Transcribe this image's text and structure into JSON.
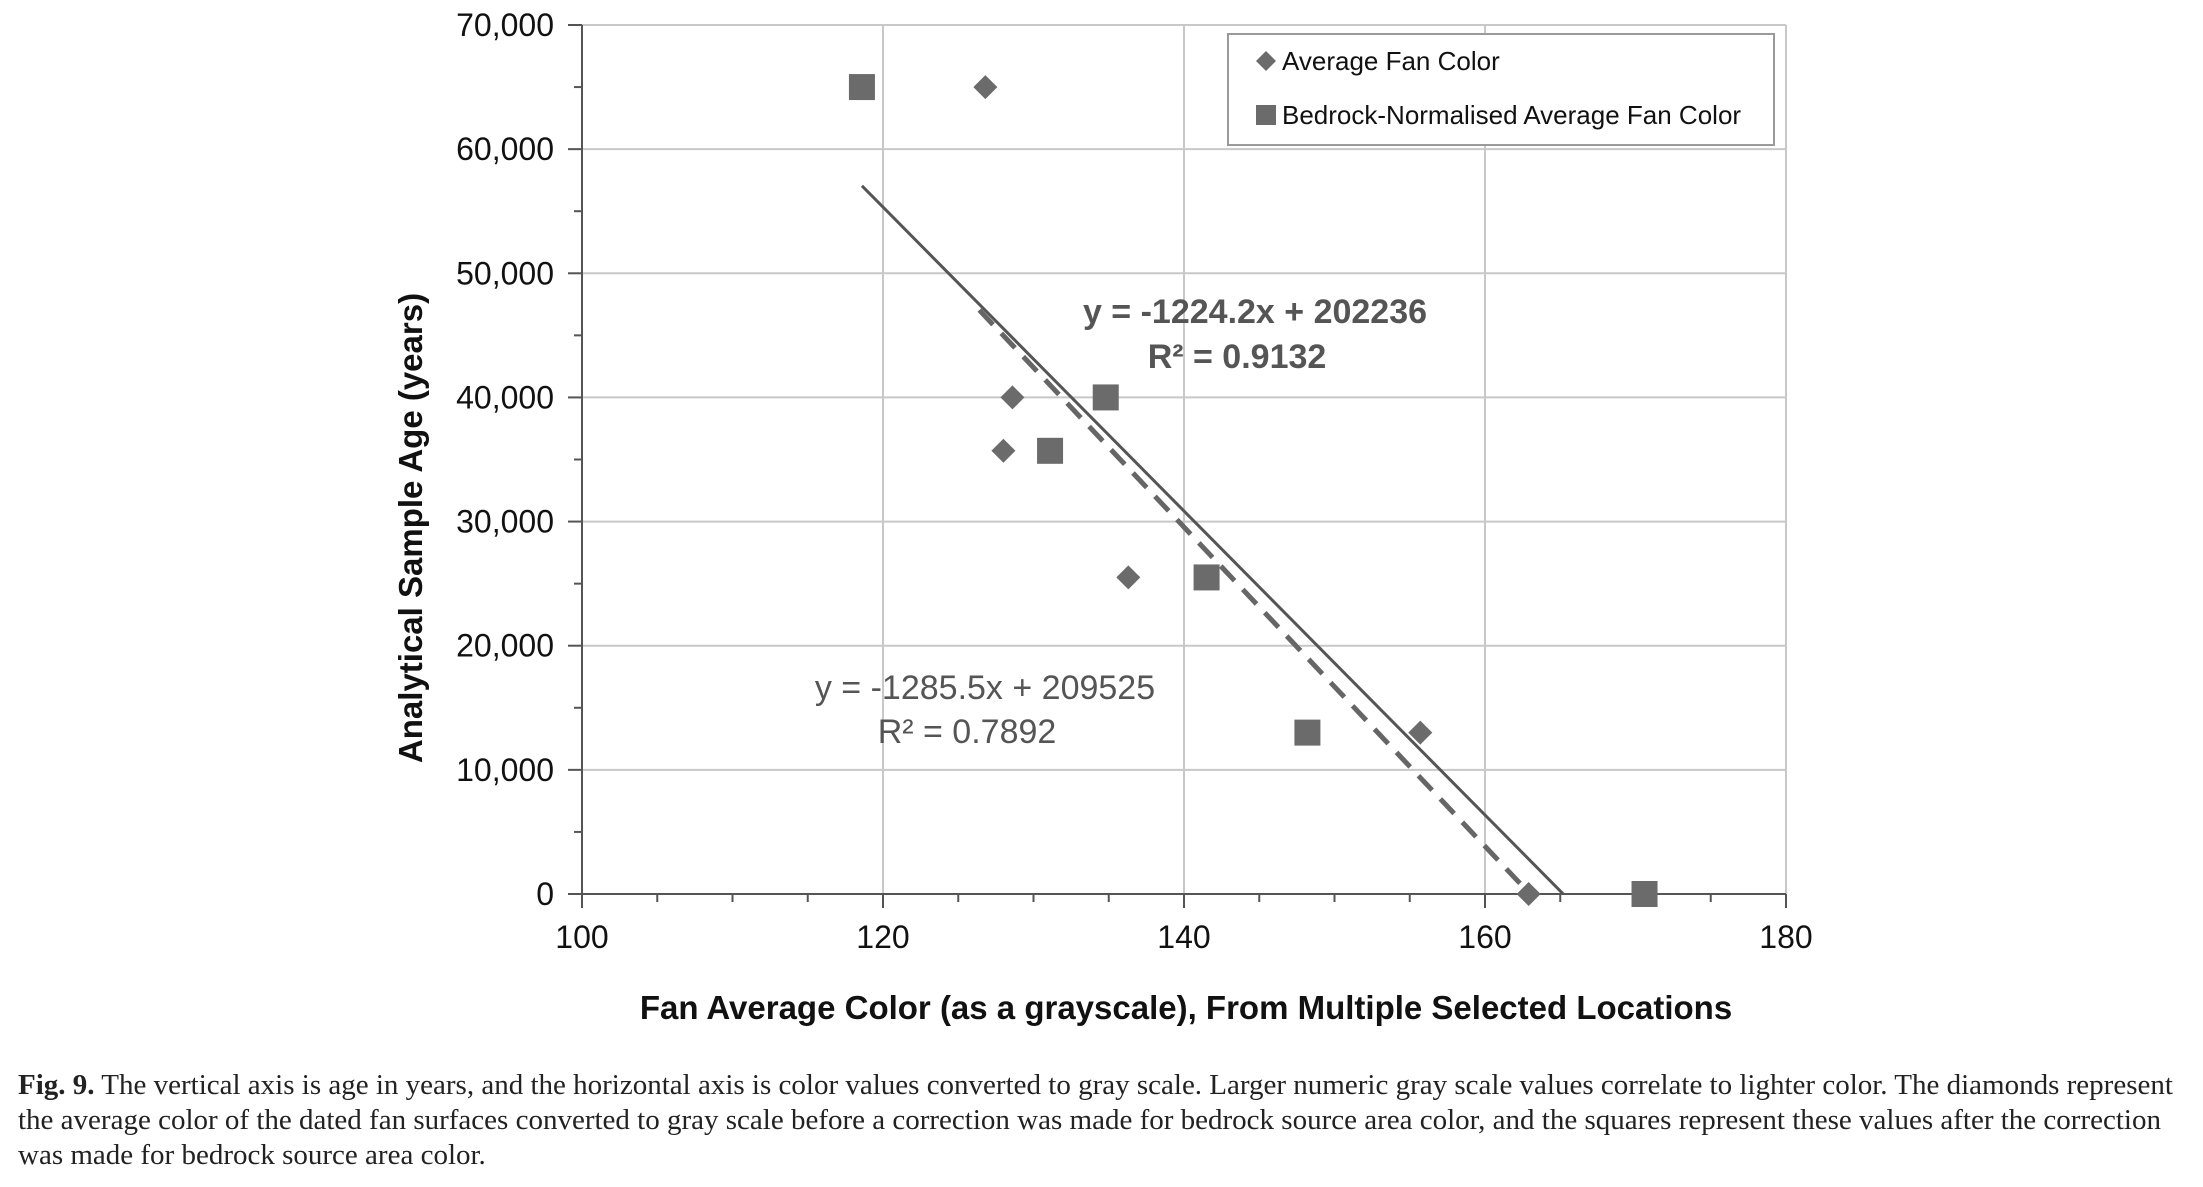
{
  "chart_data": {
    "type": "scatter",
    "xlabel": "Fan Average Color (as a grayscale), From Multiple Selected Locations",
    "ylabel": "Analytical Sample Age (years)",
    "xlim": [
      100,
      180
    ],
    "ylim": [
      0,
      70000
    ],
    "x_ticks": [
      100,
      120,
      140,
      160,
      180
    ],
    "x_tick_labels": [
      "100",
      "120",
      "140",
      "160",
      "180"
    ],
    "y_ticks": [
      0,
      10000,
      20000,
      30000,
      40000,
      50000,
      60000,
      70000
    ],
    "y_tick_labels": [
      "0",
      "10,000",
      "20,000",
      "30,000",
      "40,000",
      "50,000",
      "60,000",
      "70,000"
    ],
    "grid": true,
    "legend_position": "top-right",
    "series": [
      {
        "name": "Average Fan Color",
        "marker": "diamond",
        "color": "#6b6b6b",
        "points": [
          [
            126.8,
            65000
          ],
          [
            128.6,
            40000
          ],
          [
            128.0,
            35700
          ],
          [
            136.3,
            25500
          ],
          [
            155.7,
            13000
          ],
          [
            162.9,
            0
          ]
        ],
        "trendline": {
          "slope": -1285.5,
          "intercept": 209525,
          "x_range": [
            126.4,
            163.0
          ],
          "style": "dashed",
          "equation": "y = -1285.5x + 209525",
          "r2": "R² = 0.7892"
        }
      },
      {
        "name": "Bedrock-Normalised Average Fan Color",
        "marker": "square",
        "color": "#6b6b6b",
        "points": [
          [
            118.6,
            65000
          ],
          [
            134.8,
            40000
          ],
          [
            131.1,
            35700
          ],
          [
            141.5,
            25500
          ],
          [
            148.2,
            13000
          ],
          [
            170.6,
            0
          ]
        ],
        "trendline": {
          "slope": -1224.2,
          "intercept": 202236,
          "x_range": [
            118.6,
            165.2
          ],
          "style": "solid",
          "equation": "y = -1224.2x + 202236",
          "r2": "R² = 0.9132"
        }
      }
    ]
  },
  "caption": {
    "label": "Fig. 9.",
    "text": "The vertical axis is age in years, and the horizontal axis is color values converted to gray scale. Larger numeric gray scale values correlate to lighter color. The diamonds represent the average color of the dated fan surfaces converted to gray scale before a correction was made for bedrock source area color, and the squares represent these values after the correction was made for bedrock source area color."
  }
}
